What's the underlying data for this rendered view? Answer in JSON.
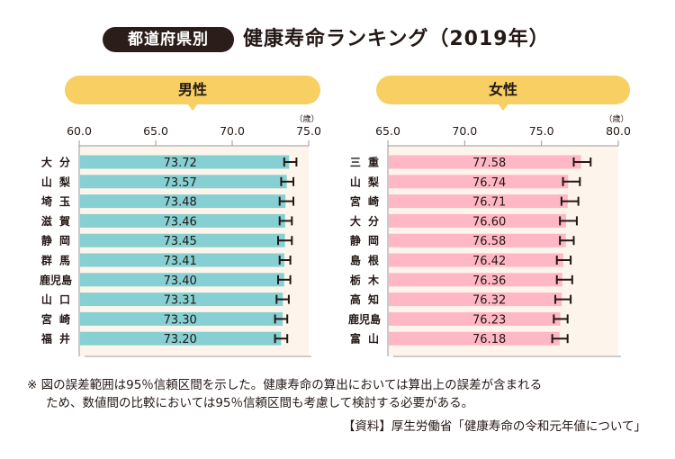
{
  "title": {
    "badge": "都道府県別",
    "main": "健康寿命ランキング（2019年）"
  },
  "colors": {
    "male_bar": "#86d0d3",
    "female_bar": "#ffb7c5",
    "plot_bg": "#fdf5eb",
    "label_bg": "#f7cf63",
    "badge_bg": "#2b1e1a"
  },
  "chart_data": [
    {
      "type": "bar",
      "orientation": "horizontal",
      "title": "男性",
      "unit_label": "（歳）",
      "xlim": [
        60.0,
        75.0
      ],
      "ticks": [
        "60.0",
        "65.0",
        "70.0",
        "75.0"
      ],
      "tick_values": [
        60,
        65,
        70,
        75
      ],
      "categories": [
        "大 分",
        "山 梨",
        "埼 玉",
        "滋 賀",
        "静 岡",
        "群 馬",
        "鹿児島",
        "山 口",
        "宮 崎",
        "福 井"
      ],
      "values": [
        73.72,
        73.57,
        73.48,
        73.46,
        73.45,
        73.41,
        73.4,
        73.31,
        73.3,
        73.2
      ],
      "value_labels": [
        "73.72",
        "73.57",
        "73.48",
        "73.46",
        "73.45",
        "73.41",
        "73.40",
        "73.31",
        "73.30",
        "73.20"
      ],
      "error_bars": {
        "type": "95% confidence interval",
        "low": [
          73.4,
          73.2,
          73.1,
          73.1,
          73.0,
          73.1,
          73.0,
          72.9,
          72.8,
          72.8
        ],
        "high": [
          74.2,
          74.0,
          74.0,
          73.9,
          73.9,
          73.8,
          73.8,
          73.7,
          73.6,
          73.6
        ]
      },
      "grid": false
    },
    {
      "type": "bar",
      "orientation": "horizontal",
      "title": "女性",
      "unit_label": "（歳）",
      "xlim": [
        65.0,
        80.0
      ],
      "ticks": [
        "65.0",
        "70.0",
        "75.0",
        "80.0"
      ],
      "tick_values": [
        65,
        70,
        75,
        80
      ],
      "categories": [
        "三 重",
        "山 梨",
        "宮 崎",
        "大 分",
        "静 岡",
        "島 根",
        "栃 木",
        "高 知",
        "鹿児島",
        "富 山"
      ],
      "values": [
        77.58,
        76.74,
        76.71,
        76.6,
        76.58,
        76.42,
        76.36,
        76.32,
        76.23,
        76.18
      ],
      "value_labels": [
        "77.58",
        "76.74",
        "76.71",
        "76.60",
        "76.58",
        "76.42",
        "76.36",
        "76.32",
        "76.23",
        "76.18"
      ],
      "error_bars": {
        "type": "95% confidence interval",
        "low": [
          77.1,
          76.4,
          76.3,
          76.2,
          76.2,
          76.0,
          76.0,
          75.9,
          75.8,
          75.7
        ],
        "high": [
          78.2,
          77.5,
          77.4,
          77.3,
          77.1,
          76.9,
          77.0,
          76.9,
          76.7,
          76.7
        ]
      },
      "grid": false
    }
  ],
  "footnote": {
    "line1": "※ 図の誤差範囲は95％信頼区間を示した。健康寿命の算出においては算出上の誤差が含まれる",
    "line2": "ため、数値間の比較においては95％信頼区間も考慮して検討する必要がある。",
    "source": "【資料】厚生労働省「健康寿命の令和元年値について」"
  }
}
